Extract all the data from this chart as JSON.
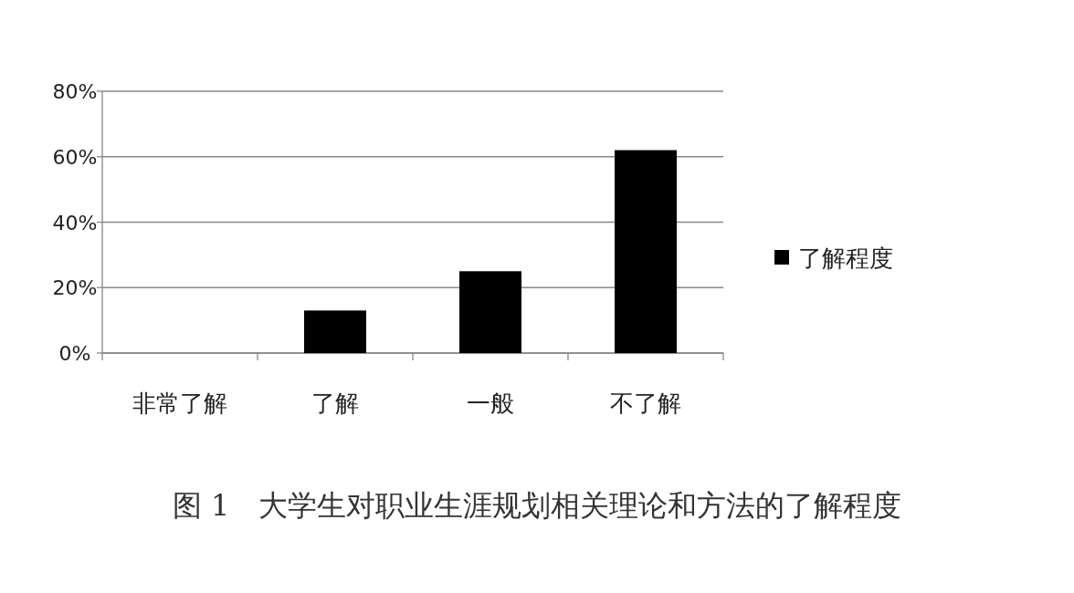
{
  "chart_data": {
    "type": "bar",
    "title": "图 1　大学生对职业生涯规划相关理论和方法的了解程度",
    "categories": [
      "非常了解",
      "了解",
      "一般",
      "不了解"
    ],
    "series": [
      {
        "name": "了解程度",
        "color": "#000000",
        "values": [
          0,
          13,
          25,
          62
        ]
      }
    ],
    "ylim": [
      0,
      80
    ],
    "yticks": [
      {
        "value": 0,
        "label": "0%"
      },
      {
        "value": 20,
        "label": "20%"
      },
      {
        "value": 40,
        "label": "40%"
      },
      {
        "value": 60,
        "label": "60%"
      },
      {
        "value": 80,
        "label": "80%"
      }
    ],
    "grid": "y",
    "legend": "right"
  }
}
